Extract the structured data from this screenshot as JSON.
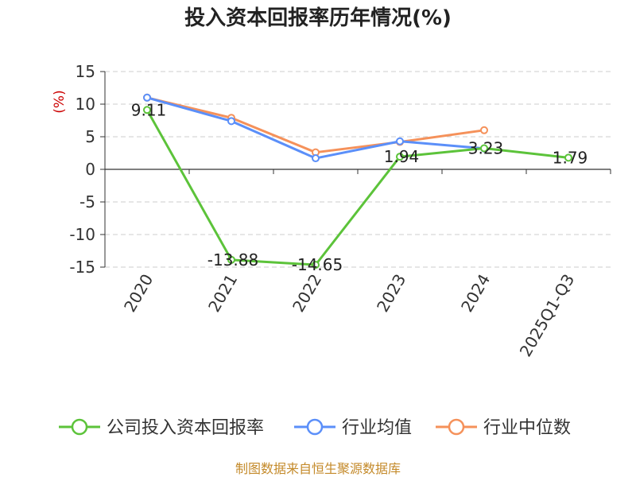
{
  "chart_data": {
    "type": "line",
    "title": "投入资本回报率历年情况(%)",
    "ylabel": "(%)",
    "ylim": [
      -15,
      15
    ],
    "yticks": [
      15,
      10,
      5,
      0,
      -5,
      -10,
      -15
    ],
    "ytick_labels": [
      "15",
      "10",
      "5",
      "0",
      "-5",
      "-10",
      "-15"
    ],
    "categories": [
      "2020",
      "2021",
      "2022",
      "2023",
      "2024",
      "2025Q1-Q3"
    ],
    "grid": true,
    "legend_position": "bottom",
    "series": [
      {
        "name": "公司投入资本回报率",
        "color": "#5cc33a",
        "values": [
          9.11,
          -13.88,
          -14.65,
          1.94,
          3.23,
          1.79
        ],
        "labels": [
          "9.11",
          "-13.88",
          "-14.65",
          "1.94",
          "3.23",
          "1.79"
        ]
      },
      {
        "name": "行业均值",
        "color": "#5b8ff9",
        "values": [
          11.0,
          7.4,
          1.7,
          4.3,
          3.2,
          null
        ]
      },
      {
        "name": "行业中位数",
        "color": "#f5915a",
        "values": [
          11.0,
          7.9,
          2.6,
          4.2,
          6.0,
          null
        ]
      }
    ]
  },
  "footer": {
    "source": "制图数据来自恒生聚源数据库"
  }
}
